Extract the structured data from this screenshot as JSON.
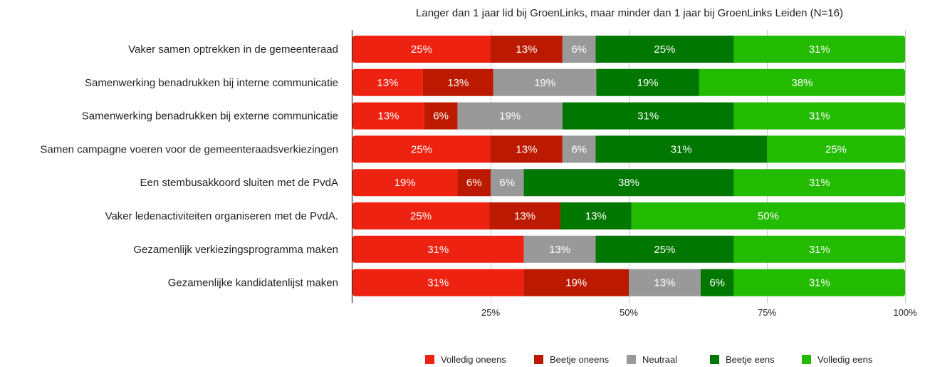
{
  "chart_data": {
    "type": "bar",
    "orientation": "horizontal",
    "stacked": true,
    "title": "Langer dan 1 jaar lid bij GroenLinks, maar minder dan 1 jaar bij GroenLinks Leiden (N=16)",
    "xlabel": "",
    "ylabel": "",
    "xlim": [
      0,
      100
    ],
    "x_ticks": [
      25,
      50,
      75,
      100
    ],
    "x_tick_labels": [
      "25%",
      "50%",
      "75%",
      "100%"
    ],
    "grid": true,
    "legend_position": "bottom-right",
    "categories": [
      "Vaker samen optrekken in de gemeenteraad",
      "Samenwerking benadrukken bij interne communicatie",
      "Samenwerking benadrukken bij externe communicatie",
      "Samen campagne voeren voor de gemeenteraadsverkiezingen",
      "Een stembusakkoord sluiten met de PvdA",
      "Vaker ledenactiviteiten organiseren met de PvdA.",
      "Gezamenlijk verkiezingsprogramma maken",
      "Gezamenlijke kandidatenlijst maken"
    ],
    "series": [
      {
        "name": "Volledig oneens",
        "color": "#ee2211",
        "values": [
          25,
          13,
          13,
          25,
          19,
          25,
          31,
          31
        ],
        "labels": [
          "25%",
          "13%",
          "13%",
          "25%",
          "19%",
          "25%",
          "31%",
          "31%"
        ]
      },
      {
        "name": "Beetje oneens",
        "color": "#bb1a00",
        "values": [
          13,
          13,
          6,
          13,
          6,
          13,
          0,
          19
        ],
        "labels": [
          "13%",
          "13%",
          "6%",
          "13%",
          "6%",
          "13%",
          "",
          "19%"
        ]
      },
      {
        "name": "Neutraal",
        "color": "#999999",
        "values": [
          6,
          19,
          19,
          6,
          6,
          0,
          13,
          13
        ],
        "labels": [
          "6%",
          "19%",
          "19%",
          "6%",
          "6%",
          "",
          "13%",
          "13%"
        ]
      },
      {
        "name": "Beetje eens",
        "color": "#007700",
        "values": [
          25,
          19,
          31,
          31,
          38,
          13,
          25,
          6
        ],
        "labels": [
          "25%",
          "19%",
          "31%",
          "31%",
          "38%",
          "13%",
          "25%",
          "6%"
        ]
      },
      {
        "name": "Volledig eens",
        "color": "#22bb00",
        "values": [
          31,
          38,
          31,
          25,
          31,
          50,
          31,
          31
        ],
        "labels": [
          "31%",
          "38%",
          "31%",
          "25%",
          "31%",
          "50%",
          "31%",
          "31%"
        ]
      }
    ]
  }
}
